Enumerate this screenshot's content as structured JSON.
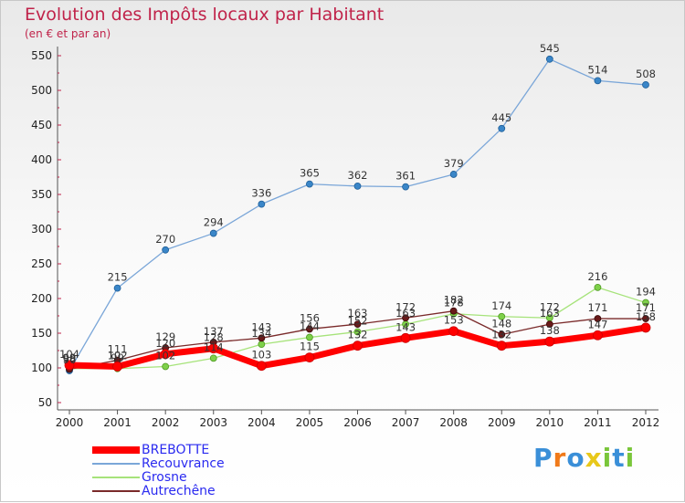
{
  "chart_data": {
    "type": "line",
    "title": "Evolution des Impôts locaux par Habitant",
    "subtitle": "(en € et par an)",
    "xlabel": "",
    "ylabel": "",
    "x": [
      "2000",
      "2001",
      "2002",
      "2003",
      "2004",
      "2005",
      "2006",
      "2007",
      "2008",
      "2009",
      "2010",
      "2011",
      "2012"
    ],
    "ylim": [
      50,
      550
    ],
    "yticks": [
      "50",
      "100",
      "150",
      "200",
      "250",
      "300",
      "350",
      "400",
      "450",
      "500",
      "550"
    ],
    "grid": false,
    "legend_position": "bottom-left",
    "series": [
      {
        "name": "BREBOTTE",
        "color": "#ff0000",
        "values": [
          104,
          102,
          120,
          128,
          103,
          115,
          132,
          143,
          153,
          132,
          138,
          147,
          158
        ]
      },
      {
        "name": "Recouvrance",
        "color": "#7aa6d8",
        "values": [
          96,
          215,
          270,
          294,
          336,
          365,
          362,
          361,
          379,
          445,
          545,
          514,
          508
        ]
      },
      {
        "name": "Grosne",
        "color": "#a6e37a",
        "values": [
          99,
          99,
          102,
          114,
          134,
          144,
          152,
          163,
          178,
          174,
          172,
          216,
          194
        ]
      },
      {
        "name": "Autrechêne",
        "color": "#7a2a2a",
        "values": [
          98,
          111,
          129,
          137,
          143,
          156,
          163,
          172,
          182,
          148,
          163,
          171,
          171
        ]
      }
    ]
  },
  "brand": {
    "letters": [
      "P",
      "r",
      "o",
      "x",
      "i",
      "t",
      "i"
    ],
    "colors": [
      "#3a8fd8",
      "#f07a1a",
      "#3a8fd8",
      "#e8c81a",
      "#7ac63a",
      "#3a8fd8",
      "#7ac63a"
    ]
  }
}
